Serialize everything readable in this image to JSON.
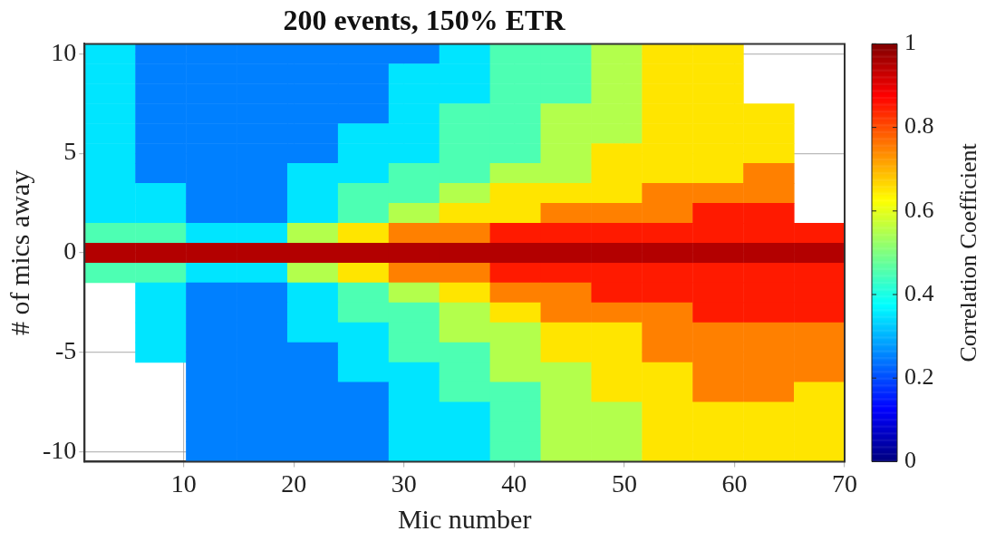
{
  "chart_data": {
    "type": "heatmap",
    "title": "200 events, 150% ETR",
    "xlabel": "Mic number",
    "ylabel": "# of mics away",
    "clabel": "Correlation Coefficient",
    "x": [
      3.3,
      7.9,
      12.5,
      17.1,
      21.7,
      26.3,
      30.9,
      35.5,
      40.1,
      44.7,
      49.3,
      53.9,
      58.5,
      63.1,
      67.7
    ],
    "y_categories": [
      "10",
      null,
      null,
      null,
      null,
      "5",
      null,
      null,
      null,
      null,
      "0",
      null,
      null,
      null,
      null,
      "-5",
      null,
      null,
      null,
      null,
      "-10"
    ],
    "cells": [
      [
        0.35,
        0.25,
        0.25,
        0.25,
        0.25,
        0.25,
        0.25,
        0.35,
        0.45,
        0.45,
        0.55,
        0.65,
        0.65,
        null,
        null
      ],
      [
        0.35,
        0.25,
        0.25,
        0.25,
        0.25,
        0.25,
        0.35,
        0.35,
        0.45,
        0.45,
        0.55,
        0.65,
        0.65,
        null,
        null
      ],
      [
        0.35,
        0.25,
        0.25,
        0.25,
        0.25,
        0.25,
        0.35,
        0.35,
        0.45,
        0.45,
        0.55,
        0.65,
        0.65,
        null,
        null
      ],
      [
        0.35,
        0.25,
        0.25,
        0.25,
        0.25,
        0.25,
        0.35,
        0.45,
        0.45,
        0.55,
        0.55,
        0.65,
        0.65,
        0.65,
        null
      ],
      [
        0.35,
        0.25,
        0.25,
        0.25,
        0.25,
        0.35,
        0.35,
        0.45,
        0.45,
        0.55,
        0.55,
        0.65,
        0.65,
        0.65,
        null
      ],
      [
        0.35,
        0.25,
        0.25,
        0.25,
        0.25,
        0.35,
        0.35,
        0.45,
        0.45,
        0.55,
        0.65,
        0.65,
        0.65,
        0.65,
        null
      ],
      [
        0.35,
        0.25,
        0.25,
        0.25,
        0.35,
        0.35,
        0.45,
        0.45,
        0.55,
        0.55,
        0.65,
        0.65,
        0.65,
        0.75,
        null
      ],
      [
        0.35,
        0.35,
        0.25,
        0.25,
        0.35,
        0.45,
        0.45,
        0.55,
        0.65,
        0.65,
        0.65,
        0.75,
        0.75,
        0.75,
        null
      ],
      [
        0.35,
        0.35,
        0.25,
        0.25,
        0.35,
        0.45,
        0.55,
        0.65,
        0.65,
        0.75,
        0.75,
        0.75,
        0.85,
        0.85,
        null
      ],
      [
        0.45,
        0.45,
        0.35,
        0.35,
        0.55,
        0.65,
        0.75,
        0.75,
        0.85,
        0.85,
        0.85,
        0.85,
        0.85,
        0.85,
        0.85
      ],
      [
        0.95,
        0.95,
        0.95,
        0.95,
        0.95,
        0.95,
        0.95,
        0.95,
        0.95,
        0.95,
        0.95,
        0.95,
        0.95,
        0.95,
        0.95
      ],
      [
        0.45,
        0.45,
        0.35,
        0.35,
        0.55,
        0.65,
        0.75,
        0.75,
        0.85,
        0.85,
        0.85,
        0.85,
        0.85,
        0.85,
        0.85
      ],
      [
        null,
        0.35,
        0.25,
        0.25,
        0.35,
        0.45,
        0.55,
        0.65,
        0.75,
        0.75,
        0.85,
        0.85,
        0.85,
        0.85,
        0.85
      ],
      [
        null,
        0.35,
        0.25,
        0.25,
        0.35,
        0.45,
        0.45,
        0.55,
        0.65,
        0.75,
        0.75,
        0.75,
        0.85,
        0.85,
        0.85
      ],
      [
        null,
        0.35,
        0.25,
        0.25,
        0.35,
        0.35,
        0.45,
        0.55,
        0.55,
        0.65,
        0.65,
        0.75,
        0.75,
        0.75,
        0.75
      ],
      [
        null,
        0.35,
        0.25,
        0.25,
        0.25,
        0.35,
        0.45,
        0.45,
        0.55,
        0.65,
        0.65,
        0.75,
        0.75,
        0.75,
        0.75
      ],
      [
        null,
        null,
        0.25,
        0.25,
        0.25,
        0.35,
        0.35,
        0.45,
        0.55,
        0.55,
        0.65,
        0.65,
        0.75,
        0.75,
        0.75
      ],
      [
        null,
        null,
        0.25,
        0.25,
        0.25,
        0.25,
        0.35,
        0.45,
        0.45,
        0.55,
        0.65,
        0.65,
        0.75,
        0.75,
        0.65
      ],
      [
        null,
        null,
        0.25,
        0.25,
        0.25,
        0.25,
        0.35,
        0.35,
        0.45,
        0.55,
        0.55,
        0.65,
        0.65,
        0.65,
        0.65
      ],
      [
        null,
        null,
        0.25,
        0.25,
        0.25,
        0.25,
        0.35,
        0.35,
        0.45,
        0.55,
        0.55,
        0.65,
        0.65,
        0.65,
        0.65
      ],
      [
        null,
        null,
        0.25,
        0.25,
        0.25,
        0.25,
        0.35,
        0.35,
        0.45,
        0.55,
        0.55,
        0.65,
        0.65,
        0.65,
        0.65
      ]
    ],
    "xlim": [
      1,
      70
    ],
    "xticks": [
      10,
      20,
      30,
      40,
      50,
      60,
      70
    ],
    "clim": [
      0,
      1
    ],
    "cticks": [
      0,
      0.2,
      0.4,
      0.6,
      0.8,
      1
    ],
    "grid": true
  }
}
